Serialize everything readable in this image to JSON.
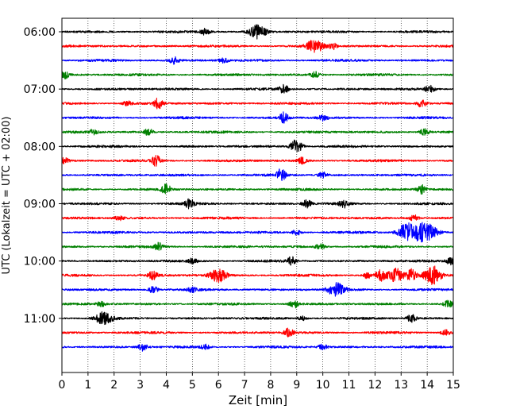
{
  "chart_data": {
    "type": "line",
    "title": "",
    "xlabel": "Zeit  [min]",
    "ylabel": "UTC (Lokalzeit = UTC + 02:00)",
    "xlim": [
      0,
      15
    ],
    "x_ticks": [
      0,
      1,
      2,
      3,
      4,
      5,
      6,
      7,
      8,
      9,
      10,
      11,
      12,
      13,
      14,
      15
    ],
    "y_tick_labels": [
      "06:00",
      "07:00",
      "08:00",
      "09:00",
      "10:00",
      "11:00"
    ],
    "trace_colors": [
      "#000000",
      "#ff0000",
      "#0000ff",
      "#008000"
    ],
    "vertical_grid": "dotted",
    "traces": [
      {
        "start": "06:00",
        "events": [
          {
            "t": 7.5,
            "amp": 0.9
          },
          {
            "t": 5.5,
            "amp": 0.4
          }
        ]
      },
      {
        "start": "06:15",
        "events": [
          {
            "t": 9.7,
            "amp": 0.9
          },
          {
            "t": 10.4,
            "amp": 0.4
          }
        ]
      },
      {
        "start": "06:30",
        "events": [
          {
            "t": 4.3,
            "amp": 0.45
          },
          {
            "t": 6.2,
            "amp": 0.3
          }
        ]
      },
      {
        "start": "06:45",
        "events": [
          {
            "t": 0.1,
            "amp": 0.5
          },
          {
            "t": 9.7,
            "amp": 0.4
          }
        ]
      },
      {
        "start": "07:00",
        "events": [
          {
            "t": 8.5,
            "amp": 0.6
          },
          {
            "t": 14.1,
            "amp": 0.5
          }
        ]
      },
      {
        "start": "07:15",
        "events": [
          {
            "t": 3.7,
            "amp": 0.7
          },
          {
            "t": 13.8,
            "amp": 0.5
          },
          {
            "t": 2.5,
            "amp": 0.3
          }
        ]
      },
      {
        "start": "07:30",
        "events": [
          {
            "t": 8.5,
            "amp": 0.8
          },
          {
            "t": 10.0,
            "amp": 0.35
          }
        ]
      },
      {
        "start": "07:45",
        "events": [
          {
            "t": 3.3,
            "amp": 0.5
          },
          {
            "t": 13.9,
            "amp": 0.5
          },
          {
            "t": 1.2,
            "amp": 0.3
          }
        ]
      },
      {
        "start": "08:00",
        "events": [
          {
            "t": 8.9,
            "amp": 0.7
          },
          {
            "t": 9.1,
            "amp": 0.5
          }
        ]
      },
      {
        "start": "08:15",
        "events": [
          {
            "t": 3.6,
            "amp": 0.7
          },
          {
            "t": 0.1,
            "amp": 0.4
          },
          {
            "t": 9.2,
            "amp": 0.4
          }
        ]
      },
      {
        "start": "08:30",
        "events": [
          {
            "t": 8.4,
            "amp": 0.8
          },
          {
            "t": 10.0,
            "amp": 0.4
          }
        ]
      },
      {
        "start": "08:45",
        "events": [
          {
            "t": 4.0,
            "amp": 0.7
          },
          {
            "t": 13.8,
            "amp": 0.6
          }
        ]
      },
      {
        "start": "09:00",
        "events": [
          {
            "t": 4.9,
            "amp": 0.6
          },
          {
            "t": 9.4,
            "amp": 0.5
          },
          {
            "t": 10.8,
            "amp": 0.5
          }
        ]
      },
      {
        "start": "09:15",
        "events": [
          {
            "t": 13.5,
            "amp": 0.5
          },
          {
            "t": 2.2,
            "amp": 0.3
          }
        ]
      },
      {
        "start": "09:30",
        "events": [
          {
            "t": 13.2,
            "amp": 1.2
          },
          {
            "t": 13.7,
            "amp": 1.0
          },
          {
            "t": 14.1,
            "amp": 0.9
          },
          {
            "t": 9.0,
            "amp": 0.4
          }
        ]
      },
      {
        "start": "09:45",
        "events": [
          {
            "t": 3.7,
            "amp": 0.5
          },
          {
            "t": 9.9,
            "amp": 0.4
          }
        ]
      },
      {
        "start": "10:00",
        "events": [
          {
            "t": 8.8,
            "amp": 0.6
          },
          {
            "t": 14.9,
            "amp": 0.5
          },
          {
            "t": 5.0,
            "amp": 0.3
          }
        ]
      },
      {
        "start": "10:15",
        "events": [
          {
            "t": 6.0,
            "amp": 0.9
          },
          {
            "t": 12.2,
            "amp": 0.8
          },
          {
            "t": 12.8,
            "amp": 0.9
          },
          {
            "t": 13.4,
            "amp": 0.8
          },
          {
            "t": 14.2,
            "amp": 1.3
          },
          {
            "t": 11.7,
            "amp": 0.4
          },
          {
            "t": 3.5,
            "amp": 0.6
          }
        ]
      },
      {
        "start": "10:30",
        "events": [
          {
            "t": 10.5,
            "amp": 0.9
          },
          {
            "t": 3.5,
            "amp": 0.5
          },
          {
            "t": 5.0,
            "amp": 0.3
          }
        ]
      },
      {
        "start": "10:45",
        "events": [
          {
            "t": 8.9,
            "amp": 0.5
          },
          {
            "t": 14.8,
            "amp": 0.5
          },
          {
            "t": 1.5,
            "amp": 0.3
          }
        ]
      },
      {
        "start": "11:00",
        "events": [
          {
            "t": 1.6,
            "amp": 0.9
          },
          {
            "t": 13.4,
            "amp": 0.5
          },
          {
            "t": 9.2,
            "amp": 0.3
          }
        ]
      },
      {
        "start": "11:15",
        "events": [
          {
            "t": 8.7,
            "amp": 0.6
          },
          {
            "t": 14.7,
            "amp": 0.4
          }
        ]
      },
      {
        "start": "11:30",
        "events": [
          {
            "t": 3.1,
            "amp": 0.5
          },
          {
            "t": 10.0,
            "amp": 0.4
          },
          {
            "t": 5.5,
            "amp": 0.3
          }
        ]
      }
    ]
  }
}
